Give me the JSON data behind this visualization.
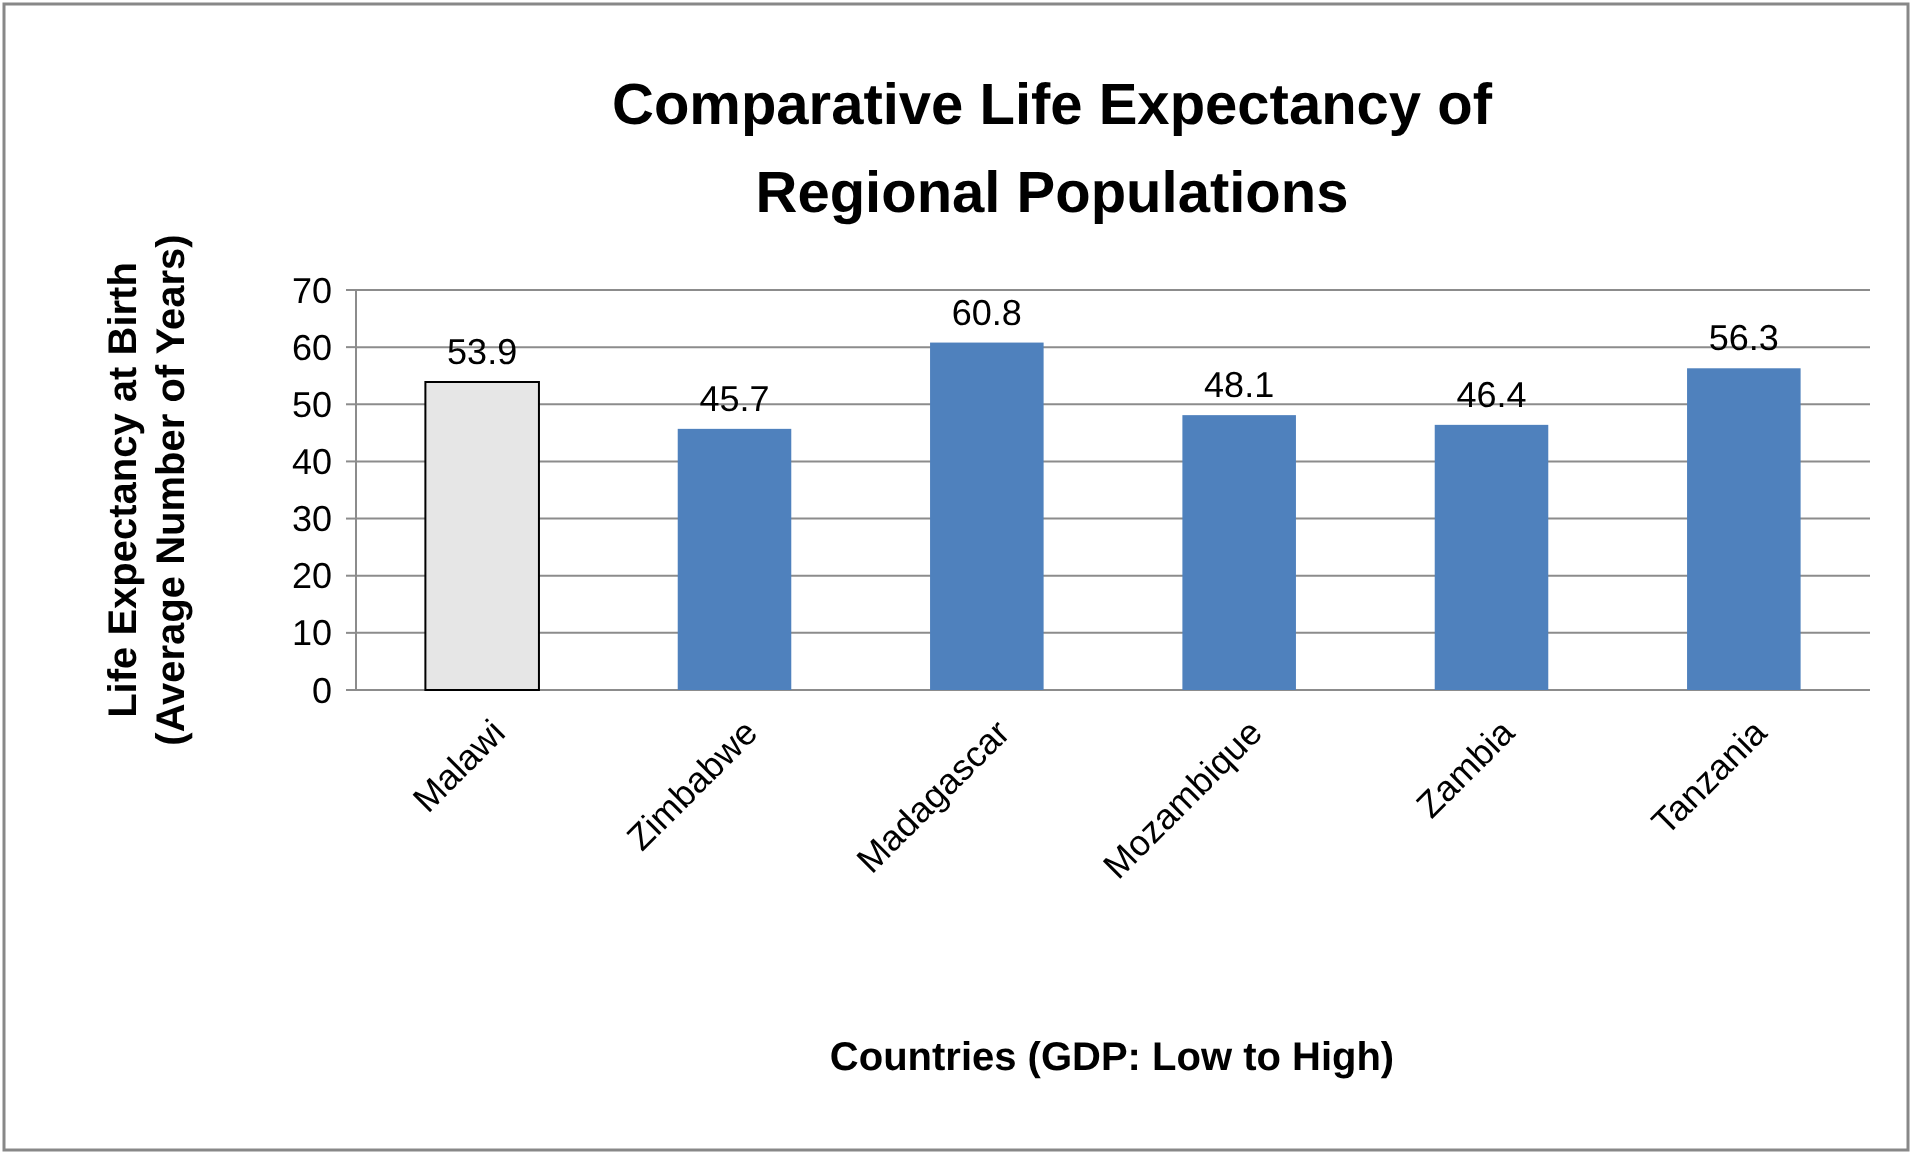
{
  "chart_data": {
    "type": "bar",
    "title": "Comparative Life Expectancy of Regional Populations",
    "xlabel": "Countries (GDP: Low to High)",
    "ylabel": "Life Expectancy at Birth (Average Number of Years)",
    "categories": [
      "Malawi",
      "Zimbabwe",
      "Madagascar",
      "Mozambique",
      "Zambia",
      "Tanzania"
    ],
    "values": [
      53.9,
      45.7,
      60.8,
      48.1,
      46.4,
      56.3
    ],
    "colors": [
      "#e6e6e6",
      "#4f81bd",
      "#4f81bd",
      "#4f81bd",
      "#4f81bd",
      "#4f81bd"
    ],
    "ylim": [
      0,
      70
    ],
    "yticks": [
      0,
      10,
      20,
      30,
      40,
      50,
      60,
      70
    ],
    "grid": "y",
    "data_labels": true
  }
}
